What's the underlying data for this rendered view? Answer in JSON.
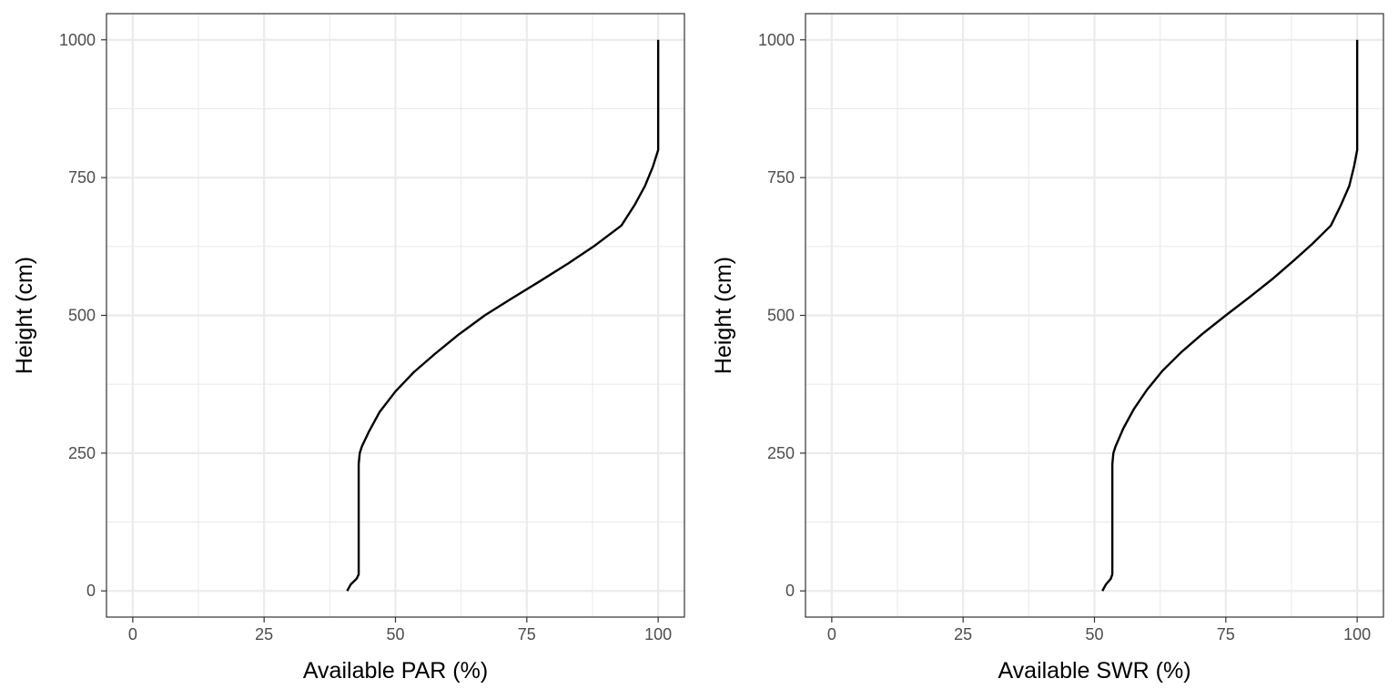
{
  "chart_data": [
    {
      "type": "line",
      "title": "",
      "xlabel": "Available PAR (%)",
      "ylabel": "Height (cm)",
      "xlim": [
        -5,
        105
      ],
      "ylim": [
        -47.5,
        1047.5
      ],
      "xticks": [
        0,
        25,
        50,
        75,
        100
      ],
      "yticks": [
        0,
        250,
        500,
        750,
        1000
      ],
      "grid": true,
      "legend": "none",
      "series": [
        {
          "color": "#000000",
          "points": [
            [
              40.8,
              0
            ],
            [
              41.5,
              12
            ],
            [
              42.6,
              22
            ],
            [
              43.0,
              30
            ],
            [
              43.0,
              230
            ],
            [
              43.2,
              250
            ],
            [
              43.6,
              262
            ],
            [
              45.0,
              290
            ],
            [
              47.0,
              325
            ],
            [
              50.0,
              362
            ],
            [
              53.5,
              397
            ],
            [
              57.5,
              430
            ],
            [
              62.0,
              465
            ],
            [
              67.0,
              500
            ],
            [
              72.0,
              530
            ],
            [
              77.5,
              562
            ],
            [
              83.0,
              595
            ],
            [
              88.0,
              627
            ],
            [
              93.0,
              663
            ],
            [
              95.5,
              700
            ],
            [
              97.5,
              735
            ],
            [
              99.0,
              770
            ],
            [
              100.0,
              800
            ],
            [
              100.0,
              1000
            ]
          ]
        }
      ]
    },
    {
      "type": "line",
      "title": "",
      "xlabel": "Available SWR (%)",
      "ylabel": "Height (cm)",
      "xlim": [
        -5,
        105
      ],
      "ylim": [
        -47.5,
        1047.5
      ],
      "xticks": [
        0,
        25,
        50,
        75,
        100
      ],
      "yticks": [
        0,
        250,
        500,
        750,
        1000
      ],
      "grid": true,
      "legend": "none",
      "series": [
        {
          "color": "#000000",
          "points": [
            [
              51.5,
              0
            ],
            [
              52.2,
              12
            ],
            [
              53.1,
              22
            ],
            [
              53.4,
              30
            ],
            [
              53.4,
              230
            ],
            [
              53.6,
              250
            ],
            [
              54.0,
              262
            ],
            [
              55.5,
              295
            ],
            [
              57.5,
              330
            ],
            [
              60.0,
              365
            ],
            [
              63.0,
              400
            ],
            [
              66.5,
              433
            ],
            [
              70.5,
              466
            ],
            [
              75.0,
              500
            ],
            [
              79.5,
              533
            ],
            [
              84.0,
              567
            ],
            [
              88.0,
              600
            ],
            [
              91.5,
              630
            ],
            [
              95.0,
              663
            ],
            [
              96.9,
              700
            ],
            [
              98.5,
              735
            ],
            [
              99.4,
              770
            ],
            [
              100.0,
              800
            ],
            [
              100.0,
              1000
            ]
          ]
        }
      ]
    }
  ]
}
